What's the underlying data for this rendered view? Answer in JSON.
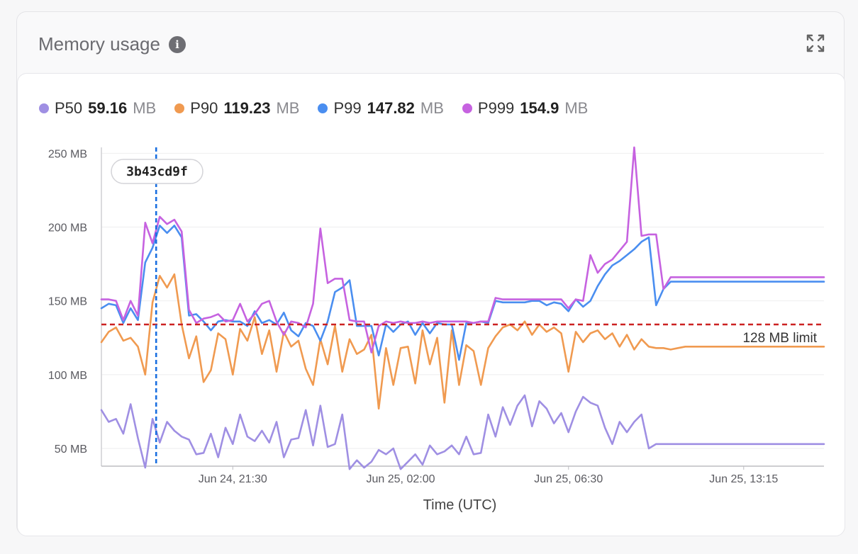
{
  "card": {
    "title": "Memory usage"
  },
  "legend": [
    {
      "name": "P50",
      "value": "59.16",
      "unit": "MB",
      "color": "#9f8fe3"
    },
    {
      "name": "P90",
      "value": "119.23",
      "unit": "MB",
      "color": "#f09a50"
    },
    {
      "name": "P99",
      "value": "147.82",
      "unit": "MB",
      "color": "#4a8ef0"
    },
    {
      "name": "P999",
      "value": "154.9",
      "unit": "MB",
      "color": "#c662e0"
    }
  ],
  "chart_data": {
    "type": "line",
    "xlabel": "Time (UTC)",
    "ylabel": "",
    "ylim": [
      38,
      254
    ],
    "y_ticks": [
      {
        "value": 50,
        "label": "50 MB"
      },
      {
        "value": 100,
        "label": "100 MB"
      },
      {
        "value": 150,
        "label": "150 MB"
      },
      {
        "value": 200,
        "label": "200 MB"
      },
      {
        "value": 250,
        "label": "250 MB"
      }
    ],
    "x_count": 100,
    "x_ticks": [
      {
        "index": 18,
        "label": "Jun 24, 21:30"
      },
      {
        "index": 41,
        "label": "Jun 25, 02:00"
      },
      {
        "index": 64,
        "label": "Jun 25, 06:30"
      },
      {
        "index": 88,
        "label": "Jun 25, 13:15"
      }
    ],
    "grid": true,
    "threshold": {
      "value": 134,
      "label": "128 MB limit",
      "color": "#cc2222"
    },
    "marker": {
      "index": 7.5,
      "label": "3b43cd9f",
      "color": "#1a6fe0"
    },
    "series": [
      {
        "name": "P50",
        "color": "#9f8fe3",
        "values": [
          76,
          68,
          70,
          60,
          80,
          57,
          37,
          70,
          54,
          68,
          62,
          58,
          56,
          46,
          47,
          60,
          44,
          64,
          53,
          73,
          58,
          55,
          62,
          54,
          68,
          44,
          56,
          57,
          76,
          52,
          79,
          51,
          53,
          73,
          36,
          42,
          37,
          41,
          49,
          46,
          50,
          36,
          41,
          46,
          39,
          52,
          46,
          48,
          52,
          46,
          58,
          46,
          47,
          73,
          58,
          78,
          66,
          79,
          86,
          65,
          82,
          77,
          67,
          74,
          61,
          75,
          85,
          81,
          79,
          64,
          53,
          68,
          61,
          68,
          73,
          50,
          53,
          53,
          53,
          53,
          53,
          53,
          53,
          53,
          53,
          53,
          53,
          53,
          53,
          53,
          53,
          53,
          53,
          53,
          53,
          53,
          53,
          53,
          53,
          53
        ]
      },
      {
        "name": "P90",
        "color": "#f09a50",
        "values": [
          122,
          129,
          132,
          123,
          125,
          119,
          100,
          149,
          167,
          159,
          168,
          134,
          111,
          126,
          95,
          103,
          128,
          124,
          100,
          131,
          123,
          139,
          114,
          130,
          102,
          129,
          119,
          123,
          104,
          93,
          124,
          107,
          133,
          102,
          124,
          114,
          117,
          127,
          77,
          118,
          93,
          118,
          119,
          94,
          130,
          107,
          125,
          81,
          130,
          93,
          120,
          116,
          93,
          118,
          126,
          132,
          134,
          130,
          136,
          127,
          134,
          129,
          132,
          128,
          102,
          129,
          122,
          128,
          130,
          124,
          128,
          119,
          127,
          117,
          124,
          119,
          118,
          118,
          117,
          118,
          119,
          119,
          119,
          119,
          119,
          119,
          119,
          119,
          119,
          119,
          119,
          119,
          119,
          119,
          119,
          119,
          119,
          119,
          119,
          119
        ]
      },
      {
        "name": "P99",
        "color": "#4a8ef0",
        "values": [
          145,
          148,
          147,
          135,
          145,
          137,
          176,
          186,
          201,
          196,
          201,
          193,
          140,
          141,
          136,
          130,
          136,
          137,
          136,
          136,
          133,
          143,
          135,
          137,
          134,
          142,
          130,
          126,
          135,
          133,
          123,
          136,
          156,
          159,
          164,
          133,
          133,
          133,
          113,
          134,
          129,
          134,
          136,
          127,
          135,
          128,
          135,
          134,
          134,
          110,
          135,
          135,
          136,
          135,
          150,
          149,
          149,
          149,
          149,
          150,
          150,
          147,
          149,
          148,
          143,
          151,
          146,
          150,
          160,
          168,
          174,
          177,
          181,
          185,
          190,
          193,
          147,
          158,
          163,
          163,
          163,
          163,
          163,
          163,
          163,
          163,
          163,
          163,
          163,
          163,
          163,
          163,
          163,
          163,
          163,
          163,
          163,
          163,
          163,
          163
        ]
      },
      {
        "name": "P999",
        "color": "#c662e0",
        "values": [
          151,
          151,
          150,
          137,
          150,
          140,
          203,
          189,
          207,
          202,
          205,
          197,
          144,
          135,
          138,
          139,
          141,
          136,
          137,
          148,
          136,
          141,
          148,
          150,
          136,
          127,
          136,
          135,
          132,
          148,
          199,
          162,
          165,
          165,
          137,
          136,
          136,
          115,
          133,
          136,
          135,
          136,
          135,
          135,
          136,
          135,
          136,
          136,
          136,
          136,
          136,
          135,
          136,
          136,
          152,
          151,
          151,
          151,
          151,
          151,
          151,
          151,
          151,
          151,
          145,
          151,
          150,
          181,
          169,
          175,
          178,
          184,
          190,
          254,
          194,
          195,
          195,
          158,
          166,
          166,
          166,
          166,
          166,
          166,
          166,
          166,
          166,
          166,
          166,
          166,
          166,
          166,
          166,
          166,
          166,
          166,
          166,
          166,
          166,
          166
        ]
      }
    ]
  }
}
